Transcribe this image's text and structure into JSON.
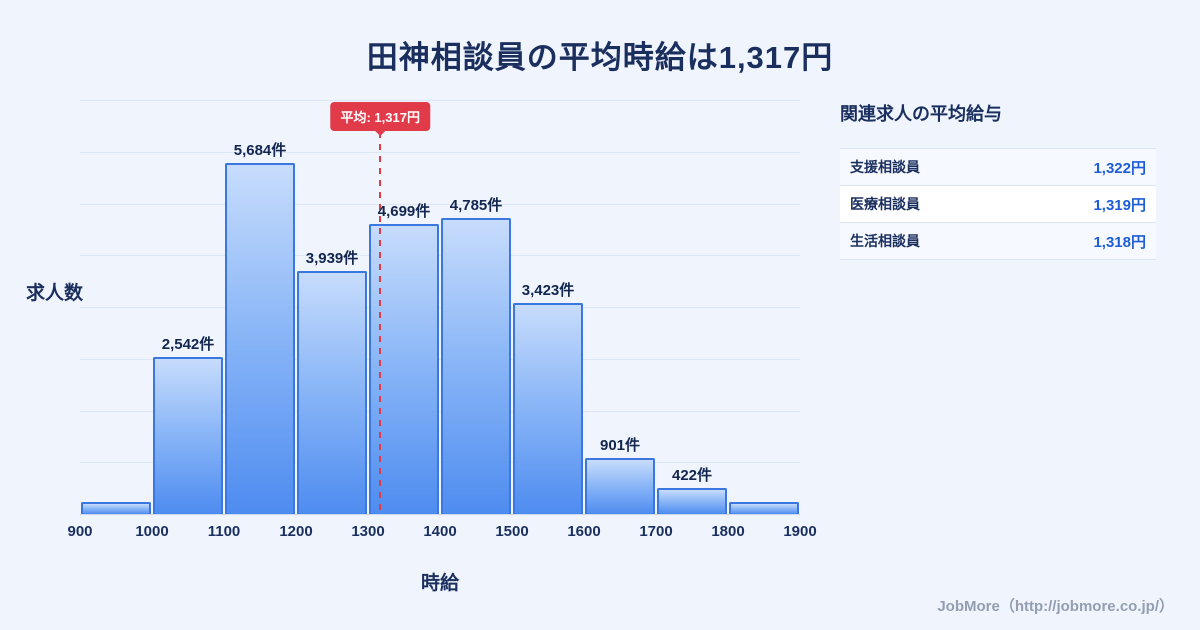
{
  "title": "田神相談員の平均時給は1,317円",
  "chart_data": {
    "type": "bar",
    "title": "田神相談員の平均時給は1,317円",
    "xlabel": "時給",
    "ylabel": "求人数",
    "bin_start": 900,
    "bin_width": 100,
    "x_ticks": [
      "900",
      "1000",
      "1100",
      "1200",
      "1300",
      "1400",
      "1500",
      "1600",
      "1700",
      "1800",
      "1900"
    ],
    "values": [
      200,
      2542,
      5684,
      3939,
      4699,
      4785,
      3423,
      901,
      422,
      190
    ],
    "labels": [
      "",
      "2,542件",
      "5,684件",
      "3,939件",
      "4,699件",
      "4,785件",
      "3,423件",
      "901件",
      "422件",
      ""
    ],
    "ylim": [
      0,
      6700
    ],
    "grid": "horizontal",
    "mean": {
      "value": 1317,
      "label": "平均: 1,317円"
    },
    "colors": {
      "bar_top": "#c7dcfc",
      "bar_bottom": "#4e8cf0",
      "bar_border": "#3a78e0",
      "mean_line": "#e13b4a"
    }
  },
  "side_panel": {
    "heading": "関連求人の平均給与",
    "rows": [
      {
        "label": "支援相談員",
        "value": "1,322円"
      },
      {
        "label": "医療相談員",
        "value": "1,319円"
      },
      {
        "label": "生活相談員",
        "value": "1,318円"
      }
    ]
  },
  "footer": {
    "text": "JobMore（http://jobmore.co.jp/）"
  }
}
